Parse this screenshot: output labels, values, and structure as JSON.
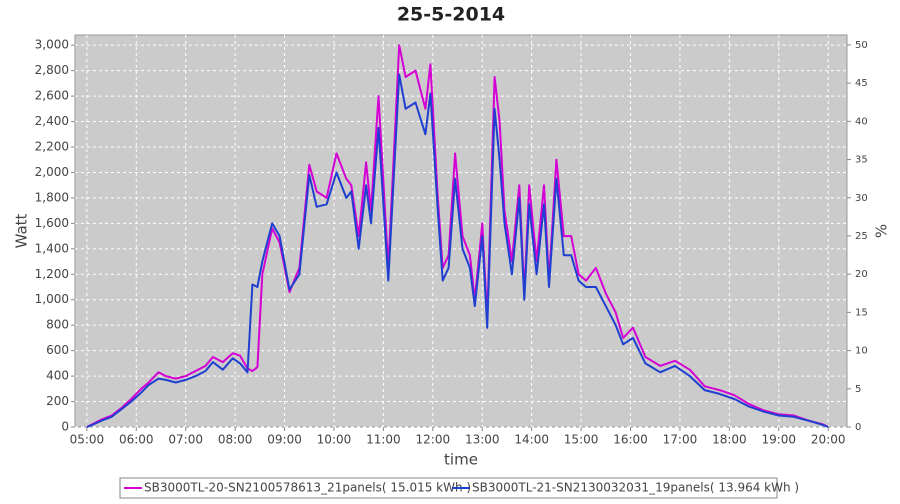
{
  "chart_data": {
    "type": "line",
    "title": "25-5-2014",
    "x_label": "time",
    "y_label": "Watt",
    "y2_label": "%",
    "legend": "bottom",
    "grid": true,
    "x": [
      5.0,
      5.1,
      5.3,
      5.5,
      5.7,
      5.9,
      6.1,
      6.25,
      6.45,
      6.6,
      6.8,
      7.0,
      7.2,
      7.4,
      7.55,
      7.75,
      7.95,
      8.1,
      8.25,
      8.35,
      8.45,
      8.55,
      8.75,
      8.9,
      9.1,
      9.3,
      9.5,
      9.65,
      9.85,
      10.05,
      10.25,
      10.35,
      10.5,
      10.65,
      10.75,
      10.9,
      11.1,
      11.32,
      11.45,
      11.65,
      11.85,
      11.95,
      12.1,
      12.2,
      12.32,
      12.45,
      12.6,
      12.75,
      12.85,
      13.0,
      13.1,
      13.25,
      13.35,
      13.45,
      13.6,
      13.75,
      13.85,
      13.95,
      14.1,
      14.25,
      14.35,
      14.5,
      14.65,
      14.8,
      14.95,
      15.1,
      15.3,
      15.5,
      15.7,
      15.85,
      16.05,
      16.3,
      16.6,
      16.9,
      17.2,
      17.5,
      17.8,
      18.1,
      18.4,
      18.7,
      19.0,
      19.3,
      19.6,
      19.9,
      20.0
    ],
    "series": [
      {
        "name": "SB3000TL-20-SN2100578613_21panels( 15.015 kWh )",
        "color": "#d400d4",
        "values": [
          0,
          20,
          60,
          90,
          150,
          220,
          300,
          350,
          430,
          400,
          380,
          400,
          440,
          480,
          550,
          510,
          580,
          560,
          460,
          440,
          470,
          1200,
          1560,
          1450,
          1060,
          1250,
          2060,
          1850,
          1800,
          2150,
          1950,
          1900,
          1500,
          2080,
          1700,
          2600,
          1250,
          3000,
          2750,
          2800,
          2500,
          2850,
          1800,
          1250,
          1350,
          2150,
          1500,
          1350,
          1000,
          1600,
          850,
          2750,
          2400,
          1700,
          1300,
          1900,
          1050,
          1900,
          1300,
          1900,
          1150,
          2100,
          1500,
          1500,
          1200,
          1150,
          1250,
          1050,
          900,
          700,
          780,
          550,
          480,
          520,
          450,
          320,
          290,
          250,
          180,
          130,
          100,
          90,
          50,
          20,
          0
        ]
      },
      {
        "name": "SB3000TL-21-SN2130032031_19panels( 13.964 kWh )",
        "color": "#1f3fd0",
        "values": [
          0,
          15,
          50,
          80,
          140,
          200,
          270,
          330,
          380,
          370,
          350,
          370,
          400,
          440,
          510,
          450,
          540,
          500,
          430,
          1120,
          1100,
          1300,
          1600,
          1500,
          1080,
          1200,
          1980,
          1730,
          1750,
          2000,
          1800,
          1850,
          1400,
          1900,
          1600,
          2350,
          1150,
          2770,
          2500,
          2550,
          2300,
          2620,
          1700,
          1150,
          1250,
          1950,
          1400,
          1250,
          950,
          1500,
          780,
          2500,
          2100,
          1600,
          1200,
          1800,
          1000,
          1750,
          1200,
          1750,
          1100,
          1950,
          1350,
          1350,
          1150,
          1100,
          1100,
          950,
          800,
          650,
          700,
          500,
          430,
          480,
          400,
          290,
          260,
          220,
          160,
          120,
          90,
          80,
          50,
          15,
          0
        ]
      }
    ],
    "xlim": [
      4.76,
      20.38
    ],
    "xticks": [
      {
        "value": 5,
        "label": "05:00"
      },
      {
        "value": 6,
        "label": "06:00"
      },
      {
        "value": 7,
        "label": "07:00"
      },
      {
        "value": 8,
        "label": "08:00"
      },
      {
        "value": 9,
        "label": "09:00"
      },
      {
        "value": 10,
        "label": "10:00"
      },
      {
        "value": 11,
        "label": "11:00"
      },
      {
        "value": 12,
        "label": "12:00"
      },
      {
        "value": 13,
        "label": "13:00"
      },
      {
        "value": 14,
        "label": "14:00"
      },
      {
        "value": 15,
        "label": "15:00"
      },
      {
        "value": 16,
        "label": "16:00"
      },
      {
        "value": 17,
        "label": "17:00"
      },
      {
        "value": 18,
        "label": "18:00"
      },
      {
        "value": 19,
        "label": "19:00"
      },
      {
        "value": 20,
        "label": "20:00"
      }
    ],
    "ylim": [
      0,
      3080
    ],
    "yticks": [
      0,
      200,
      400,
      600,
      800,
      {
        "value": 1000,
        "label": "1,000"
      },
      {
        "value": 1200,
        "label": "1,200"
      },
      {
        "value": 1400,
        "label": "1,400"
      },
      {
        "value": 1600,
        "label": "1,600"
      },
      {
        "value": 1800,
        "label": "1,800"
      },
      {
        "value": 2000,
        "label": "2,000"
      },
      {
        "value": 2200,
        "label": "2,200"
      },
      {
        "value": 2400,
        "label": "2,400"
      },
      {
        "value": 2600,
        "label": "2,600"
      },
      {
        "value": 2800,
        "label": "2,800"
      },
      {
        "value": 3000,
        "label": "3,000"
      }
    ],
    "y2lim": [
      0,
      51.3
    ],
    "y2ticks": [
      0,
      5,
      10,
      15,
      20,
      25,
      30,
      35,
      40,
      45,
      50
    ]
  }
}
